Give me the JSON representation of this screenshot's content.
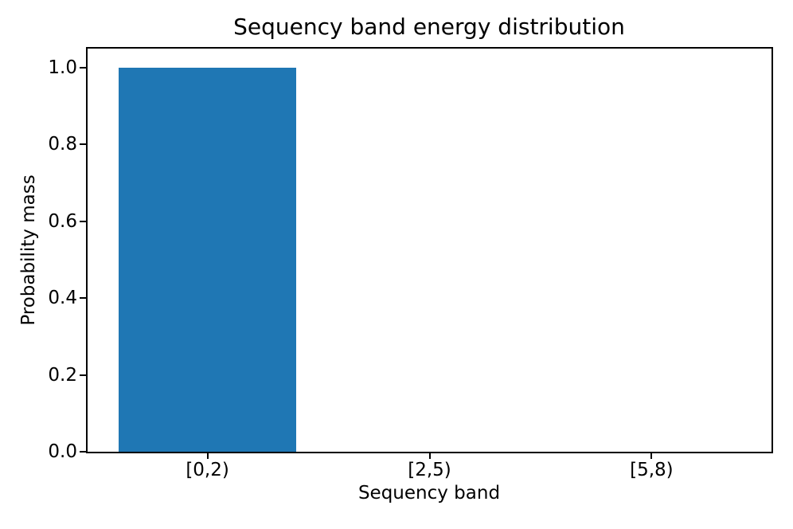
{
  "chart_data": {
    "type": "bar",
    "title": "Sequency band energy distribution",
    "xlabel": "Sequency band",
    "ylabel": "Probability mass",
    "categories": [
      "[0,2)",
      "[2,5)",
      "[5,8)"
    ],
    "values": [
      1.0,
      0.0,
      0.0
    ],
    "ytick_labels": [
      "0.0",
      "0.2",
      "0.4",
      "0.6",
      "0.8",
      "1.0"
    ],
    "xlim": [
      -0.54,
      2.54
    ],
    "ylim": [
      0,
      1.05
    ],
    "bar_width": 0.8,
    "bar_color": "#1f77b4",
    "axis_color": "#000000",
    "text_color": "#000000",
    "background_color": "#ffffff",
    "grid": false,
    "legend": false
  }
}
